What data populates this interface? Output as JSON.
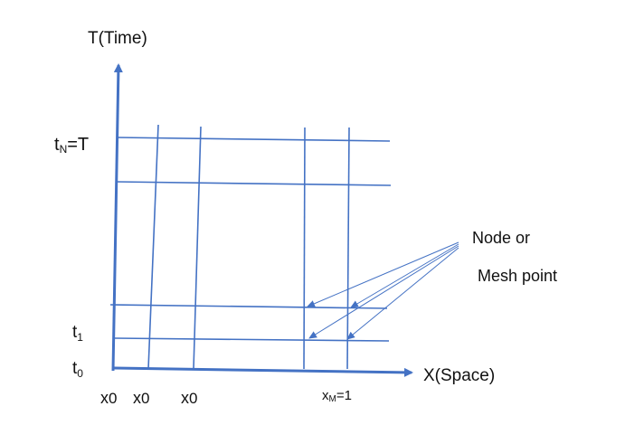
{
  "colors": {
    "axis": "#4472C4",
    "grid": "#4472C4",
    "text": "#111111",
    "background": "#FFFFFF"
  },
  "labels": {
    "t_axis": "T(Time)",
    "x_axis": "X(Space)",
    "tN_main": "t",
    "tN_sub": "N",
    "tN_rest": "=T",
    "t1_main": "t",
    "t1_sub": "1",
    "t0_main": "t",
    "t0_sub": "0",
    "x0a_main": "x",
    "x0a_sub": "0",
    "x0b_main": "x",
    "x0b_sub": "0",
    "x0c_main": "x",
    "x0c_sub": "0",
    "xM_main": "x",
    "xM_sub": "M",
    "xM_rest": "=1",
    "node_line1": "Node or",
    "node_line2": "Mesh point"
  }
}
